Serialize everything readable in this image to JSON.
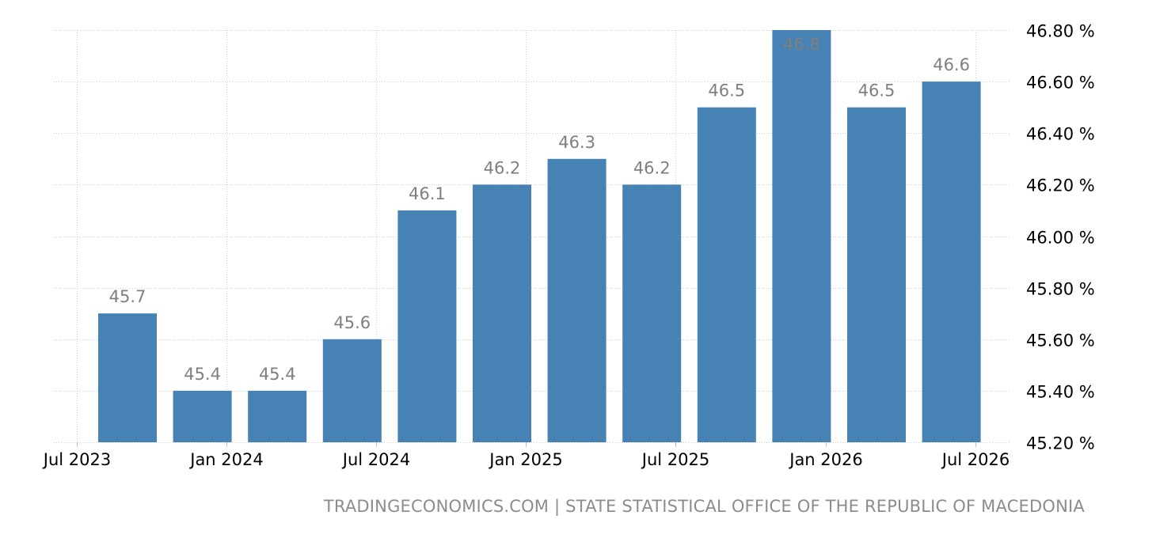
{
  "chart_data": {
    "type": "bar",
    "title": "",
    "xlabel": "",
    "ylabel": "",
    "x": [
      "2023-10",
      "2024-01",
      "2024-04",
      "2024-07",
      "2024-10",
      "2025-01",
      "2025-04",
      "2025-07",
      "2025-10",
      "2026-01",
      "2026-04",
      "2026-07"
    ],
    "values": [
      45.7,
      45.4,
      45.4,
      45.6,
      46.1,
      46.2,
      46.3,
      46.2,
      46.5,
      46.8,
      46.5,
      46.6
    ],
    "data_labels": [
      "45.7",
      "45.4",
      "45.4",
      "45.6",
      "46.1",
      "46.2",
      "46.3",
      "46.2",
      "46.5",
      "46.8",
      "46.5",
      "46.6"
    ],
    "x_tick_labels": [
      "Jul 2023",
      "Jan 2024",
      "Jul 2024",
      "Jan 2025",
      "Jul 2025",
      "Jan 2026",
      "Jul 2026"
    ],
    "y_ticks": [
      45.2,
      45.4,
      45.6,
      45.8,
      46.0,
      46.2,
      46.4,
      46.6,
      46.8
    ],
    "y_tick_labels": [
      "45.20 %",
      "45.40 %",
      "45.60 %",
      "45.80 %",
      "46.00 %",
      "46.20 %",
      "46.40 %",
      "46.60 %",
      "46.80 %"
    ],
    "ylim": [
      45.2,
      46.8
    ],
    "y_axis_position": "right",
    "grid": true,
    "legend": "none",
    "bar_color": "#4682b4",
    "label_color": "#7f7f7f"
  },
  "source": "TRADINGECONOMICS.COM | STATE STATISTICAL OFFICE OF THE REPUBLIC OF MACEDONIA"
}
